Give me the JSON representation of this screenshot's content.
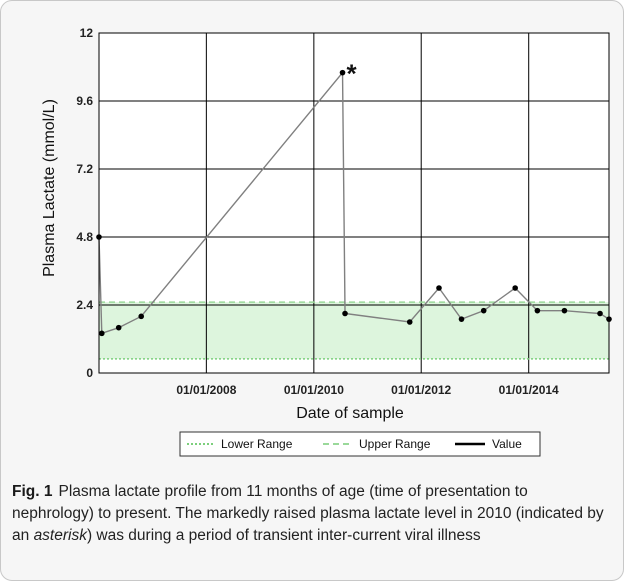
{
  "chart_data": {
    "type": "line",
    "ylabel": "Plasma Lactate (mmol/L)",
    "xlabel": "Date of sample",
    "ylim": [
      0,
      12
    ],
    "yticks": [
      0,
      2.4,
      4.8,
      7.2,
      9.6,
      12
    ],
    "ytick_labels": [
      "0",
      "2.4",
      "4.8",
      "7.2",
      "9.6",
      "12"
    ],
    "xlim": [
      "2006-01-01",
      "2015-07-01"
    ],
    "xticks": [
      "2008-01-01",
      "2010-01-01",
      "2012-01-01",
      "2014-01-01"
    ],
    "xtick_labels": [
      "01/01/2008",
      "01/01/2010",
      "01/01/2012",
      "01/01/2014"
    ],
    "grid": true,
    "reference_range": {
      "lower": 0.5,
      "upper": 2.5,
      "fill": "#ddf5dd"
    },
    "series": [
      {
        "name": "Lower Range",
        "style": "dotted",
        "color": "#7ccf7c",
        "values": [
          0.5,
          0.5
        ]
      },
      {
        "name": "Upper Range",
        "style": "dashed",
        "color": "#9ad99a",
        "values": [
          2.5,
          2.5
        ]
      },
      {
        "name": "Value",
        "style": "solid-markers",
        "color": "#808080",
        "x": [
          "2006-01-01",
          "2006-01-20",
          "2006-05-15",
          "2006-10-15",
          "2010-07-15",
          "2010-08-01",
          "2011-10-15",
          "2012-05-01",
          "2012-10-01",
          "2013-03-01",
          "2013-10-01",
          "2014-03-01",
          "2014-09-01",
          "2015-05-01",
          "2015-07-01"
        ],
        "y": [
          4.8,
          1.4,
          1.6,
          2.0,
          10.6,
          2.1,
          1.8,
          3.0,
          1.9,
          2.2,
          3.0,
          2.2,
          2.2,
          2.1,
          1.9
        ]
      }
    ],
    "annotation": {
      "text": "*",
      "x": "2010-07-15",
      "y": 10.6
    },
    "legend_position": "bottom"
  },
  "caption": {
    "label": "Fig. 1",
    "part1": "Plasma lactate profile from 11 months of age (time of presentation to nephrology) to present. The markedly raised plasma lactate level in 2010 (indicated by an ",
    "italic": "asterisk",
    "part2": ") was during a period of transient inter-current viral illness"
  }
}
